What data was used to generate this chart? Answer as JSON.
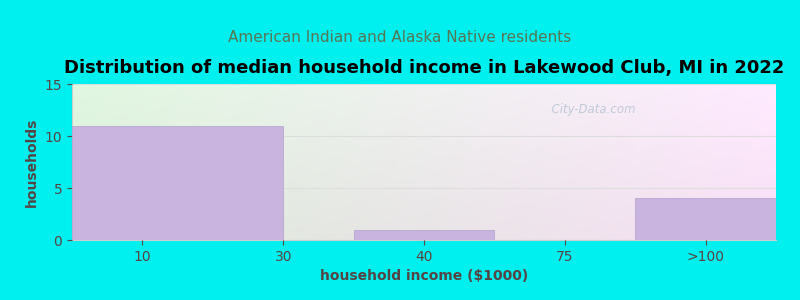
{
  "title": "Distribution of median household income in Lakewood Club, MI in 2022",
  "subtitle": "American Indian and Alaska Native residents",
  "xlabel": "household income ($1000)",
  "ylabel": "households",
  "categories": [
    "10",
    "30",
    "40",
    "75",
    ">100"
  ],
  "values": [
    11,
    0,
    1,
    0,
    4
  ],
  "bar_color": "#c9b4e0",
  "bar_edgecolor": "#b0a0cc",
  "background_color": "#00efef",
  "plot_bg_color": "#eefff0",
  "ylim": [
    0,
    15
  ],
  "yticks": [
    0,
    5,
    10,
    15
  ],
  "title_fontsize": 13,
  "subtitle_fontsize": 11,
  "subtitle_color": "#557755",
  "axis_label_fontsize": 10,
  "tick_label_color": "#554444",
  "watermark": "  City-Data.com"
}
